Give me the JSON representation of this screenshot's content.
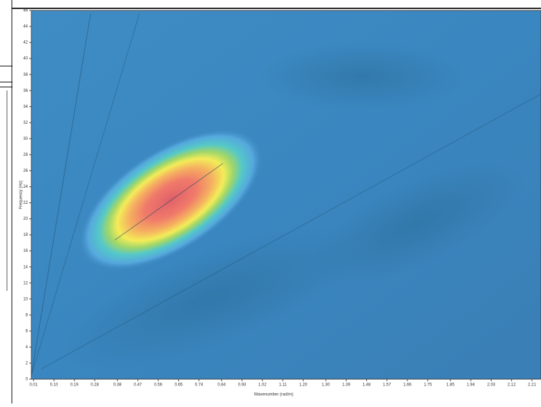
{
  "chart_data": {
    "type": "heatmap",
    "x_label": "Wavenumber (rad/m)",
    "y_label": "Frequency (Hz)",
    "xlim": [
      0,
      2.25
    ],
    "xticks": [
      0.01,
      {
        "value": 0.1,
        "label": "0.10"
      },
      0.19,
      0.28,
      0.38,
      0.47,
      0.56,
      0.65,
      0.74,
      0.84,
      0.93,
      1.02,
      1.11,
      {
        "value": 1.2,
        "label": "1.20"
      },
      {
        "value": 1.3,
        "label": "1.30"
      },
      1.39,
      1.48,
      1.57,
      1.66,
      1.75,
      1.85,
      1.94,
      2.03,
      2.12,
      2.21
    ],
    "ylim": [
      0,
      46
    ],
    "yticks": [
      0,
      2,
      4,
      6,
      8,
      10,
      12,
      14,
      16,
      18,
      20,
      22,
      24,
      26,
      28,
      30,
      32,
      34,
      36,
      38,
      40,
      42,
      44,
      46
    ]
  }
}
